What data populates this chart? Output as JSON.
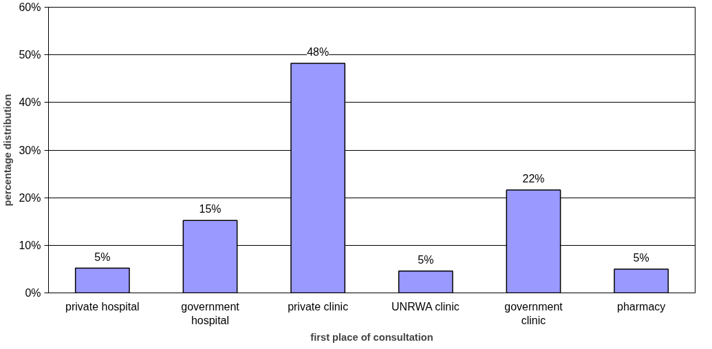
{
  "chart_data": {
    "type": "bar",
    "xlabel": "first place of consultation",
    "ylabel": "percentage distribution",
    "categories": [
      "private hospital",
      "government hospital",
      "private clinic",
      "UNRWA clinic",
      "government clinic",
      "pharmacy"
    ],
    "values": [
      5.2,
      15.2,
      48.2,
      4.6,
      21.6,
      5.0
    ],
    "value_labels": [
      "5%",
      "15%",
      "48%",
      "5%",
      "22%",
      "5%"
    ],
    "color": "#9999ff",
    "ylim": [
      0,
      60
    ],
    "yticks": [
      {
        "value": 0,
        "label": "0%"
      },
      {
        "value": 10,
        "label": "10%"
      },
      {
        "value": 20,
        "label": "20%"
      },
      {
        "value": 30,
        "label": "30%"
      },
      {
        "value": 40,
        "label": "40%"
      },
      {
        "value": 50,
        "label": "50%"
      },
      {
        "value": 60,
        "label": "60%"
      }
    ],
    "grid": "y"
  }
}
